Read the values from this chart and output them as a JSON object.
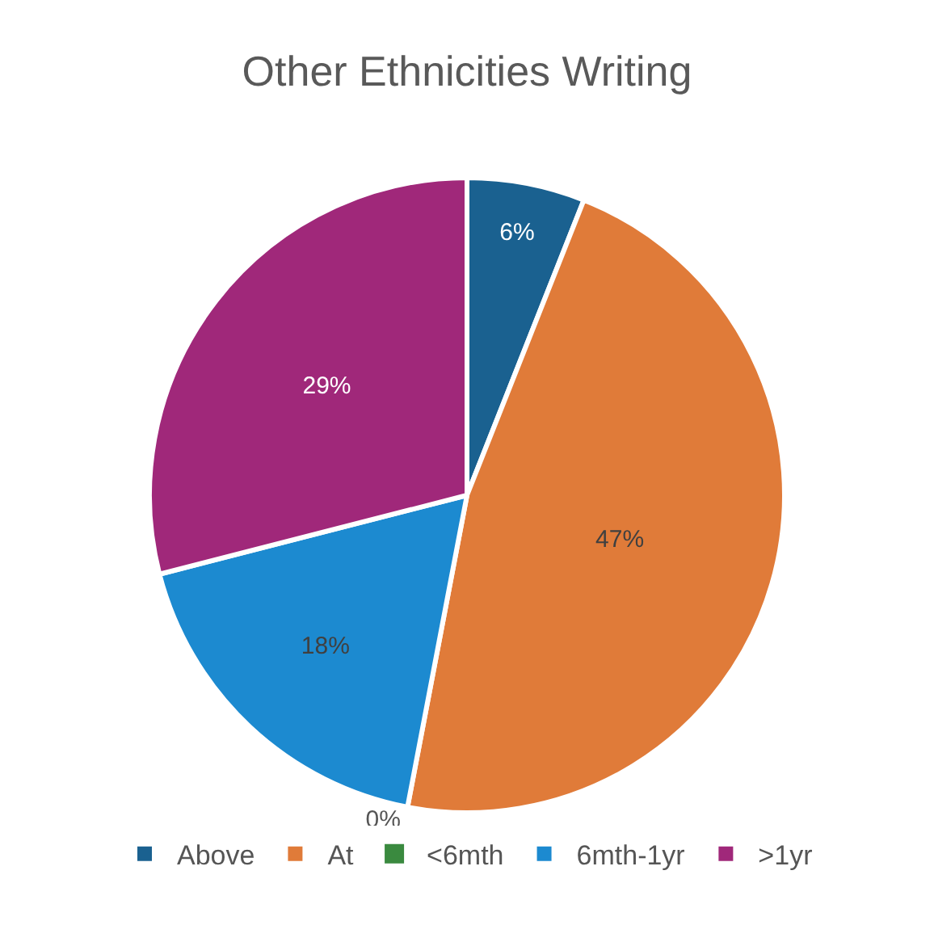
{
  "chart_data": {
    "type": "pie",
    "title": "Other Ethnicities Writing",
    "categories": [
      "Above",
      "At",
      "<6mth",
      "6mth-1yr",
      ">1yr"
    ],
    "values": [
      6,
      47,
      0,
      18,
      29
    ],
    "value_labels": [
      "6%",
      "47%",
      "0%",
      "18%",
      "29%"
    ],
    "colors": [
      "#1a6190",
      "#e07b39",
      "#3a8a3f",
      "#1c8ad0",
      "#a0287a"
    ],
    "legend": "bottom"
  }
}
